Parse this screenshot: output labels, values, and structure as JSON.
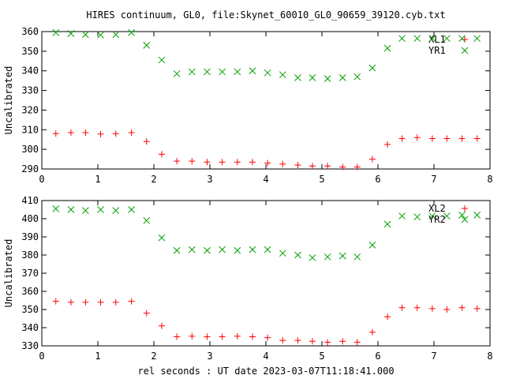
{
  "figure": {
    "title": "HIRES continuum, GL0, file:Skynet_60010_GL0_90659_39120.cyb.txt",
    "xlabel": "rel seconds : UT date 2023-03-07T11:18:41.000"
  },
  "colors": {
    "red": "#ff0000",
    "green": "#00a000",
    "axis": "#000000"
  },
  "chart_data": [
    {
      "type": "scatter",
      "title": "HIRES continuum, GL0, file:Skynet_60010_GL0_90659_39120.cyb.txt",
      "xlabel": "",
      "ylabel": "Uncalibrated",
      "xlim": [
        0,
        8
      ],
      "ylim": [
        290,
        360
      ],
      "xticks": [
        0,
        1,
        2,
        3,
        4,
        5,
        6,
        7,
        8
      ],
      "yticks": [
        290,
        300,
        310,
        320,
        330,
        340,
        350,
        360
      ],
      "legend_position": "top-right",
      "series": [
        {
          "name": "XL1",
          "marker": "plus",
          "color": "#ff0000",
          "x": [
            0.25,
            0.52,
            0.78,
            1.05,
            1.32,
            1.6,
            1.87,
            2.14,
            2.41,
            2.68,
            2.95,
            3.22,
            3.49,
            3.76,
            4.03,
            4.3,
            4.57,
            4.83,
            5.1,
            5.37,
            5.63,
            5.9,
            6.17,
            6.43,
            6.7,
            6.97,
            7.23,
            7.5,
            7.77
          ],
          "y": [
            308,
            308.5,
            308.5,
            307.8,
            308,
            308.5,
            304,
            297.5,
            294,
            294,
            293.5,
            293.5,
            293.5,
            293.5,
            293,
            292.5,
            292,
            291.5,
            291.5,
            291,
            291,
            295,
            302.5,
            305.5,
            306,
            305.5,
            305.5,
            305.5,
            305.5
          ]
        },
        {
          "name": "YR1",
          "marker": "cross",
          "color": "#00a000",
          "x": [
            0.25,
            0.52,
            0.78,
            1.05,
            1.32,
            1.6,
            1.87,
            2.14,
            2.41,
            2.68,
            2.95,
            3.22,
            3.49,
            3.76,
            4.03,
            4.3,
            4.57,
            4.83,
            5.1,
            5.37,
            5.63,
            5.9,
            6.17,
            6.43,
            6.7,
            6.97,
            7.23,
            7.5,
            7.77
          ],
          "y": [
            359.5,
            359,
            358.5,
            358.3,
            358.5,
            359.5,
            353,
            345.5,
            338.5,
            339.5,
            339.5,
            339.5,
            339.5,
            340,
            339,
            338,
            336.5,
            336.5,
            336,
            336.5,
            337,
            341.5,
            351.5,
            356.5,
            356.5,
            356.5,
            356.5,
            356.5,
            356.5
          ]
        }
      ]
    },
    {
      "type": "scatter",
      "title": "",
      "xlabel": "rel seconds : UT date 2023-03-07T11:18:41.000",
      "ylabel": "Uncalibrated",
      "xlim": [
        0,
        8
      ],
      "ylim": [
        330,
        410
      ],
      "xticks": [
        0,
        1,
        2,
        3,
        4,
        5,
        6,
        7,
        8
      ],
      "yticks": [
        330,
        340,
        350,
        360,
        370,
        380,
        390,
        400,
        410
      ],
      "legend_position": "top-right",
      "series": [
        {
          "name": "XL2",
          "marker": "plus",
          "color": "#ff0000",
          "x": [
            0.25,
            0.52,
            0.78,
            1.05,
            1.32,
            1.6,
            1.87,
            2.14,
            2.41,
            2.68,
            2.95,
            3.22,
            3.49,
            3.76,
            4.03,
            4.3,
            4.57,
            4.83,
            5.1,
            5.37,
            5.63,
            5.9,
            6.17,
            6.43,
            6.7,
            6.97,
            7.23,
            7.5,
            7.77
          ],
          "y": [
            354.5,
            354,
            354,
            354,
            354,
            354.5,
            348,
            341,
            335,
            335.3,
            335,
            335,
            335.3,
            335,
            334.5,
            333,
            333,
            332.5,
            332,
            332.5,
            332,
            337.5,
            346,
            351,
            351,
            350.5,
            350,
            351,
            350.5
          ]
        },
        {
          "name": "YR2",
          "marker": "cross",
          "color": "#00a000",
          "x": [
            0.25,
            0.52,
            0.78,
            1.05,
            1.32,
            1.6,
            1.87,
            2.14,
            2.41,
            2.68,
            2.95,
            3.22,
            3.49,
            3.76,
            4.03,
            4.3,
            4.57,
            4.83,
            5.1,
            5.37,
            5.63,
            5.9,
            6.17,
            6.43,
            6.7,
            6.97,
            7.23,
            7.5,
            7.77
          ],
          "y": [
            405.5,
            405,
            404.5,
            405,
            404.5,
            405,
            399,
            389.5,
            382.5,
            383,
            382.5,
            383,
            382.5,
            383,
            383,
            381,
            380,
            378.5,
            379,
            379.5,
            379,
            385.5,
            397,
            401.5,
            401,
            401.5,
            401.5,
            402,
            402
          ]
        }
      ]
    }
  ]
}
